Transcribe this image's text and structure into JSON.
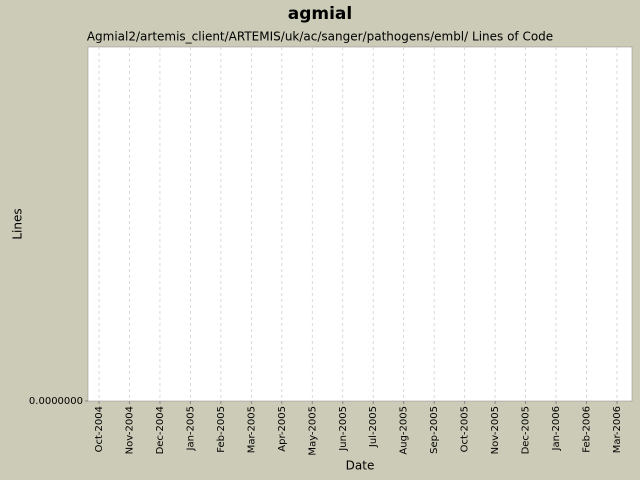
{
  "chart_data": {
    "type": "line",
    "title": "agmial",
    "subtitle": "Agmial2/artemis_client/ARTEMIS/uk/ac/sanger/pathogens/embl/ Lines of Code",
    "x_label": "Date",
    "y_label": "Lines",
    "categories": [
      "Oct-2004",
      "Nov-2004",
      "Dec-2004",
      "Jan-2005",
      "Feb-2005",
      "Mar-2005",
      "Apr-2005",
      "May-2005",
      "Jun-2005",
      "Jul-2005",
      "Aug-2005",
      "Sep-2005",
      "Oct-2005",
      "Nov-2005",
      "Dec-2005",
      "Jan-2006",
      "Feb-2006",
      "Mar-2006"
    ],
    "series": [],
    "ylim": [
      0,
      1
    ],
    "yticks": [
      {
        "value": 0,
        "label": "0.0000000"
      }
    ],
    "grid": true
  }
}
